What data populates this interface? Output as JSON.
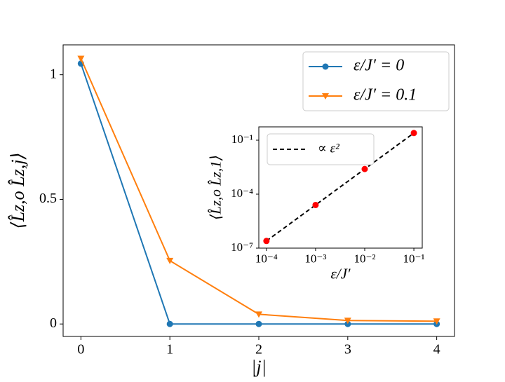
{
  "chart_data": [
    {
      "type": "line",
      "xlabel": "|j|",
      "ylabel": "⟨L̂z,o L̂z,j⟩",
      "x": [
        0,
        1,
        2,
        3,
        4
      ],
      "series": [
        {
          "name": "ε/J′ = 0",
          "color": "#1f77b4",
          "marker": "circle",
          "values": [
            1.045,
            0,
            0,
            0,
            0
          ]
        },
        {
          "name": "ε/J′ = 0.1",
          "color": "#ff7f0e",
          "marker": "triangle",
          "values": [
            1.065,
            0.254,
            0.039,
            0.014,
            0.011
          ]
        }
      ],
      "xlim": [
        -0.2,
        4.2
      ],
      "ylim": [
        -0.05,
        1.12
      ],
      "xticks": [
        0,
        1,
        2,
        3,
        4
      ],
      "yticks": [
        0,
        0.5,
        1
      ],
      "legend": "upper right"
    },
    {
      "type": "line",
      "xlabel": "ε/J′",
      "ylabel": "⟨L̂z,o L̂z,1⟩",
      "x": [
        0.0001,
        0.001,
        0.01,
        0.1
      ],
      "series": [
        {
          "name": "∝ ε²",
          "color": "#000000",
          "dashed": true,
          "values": [
            2.5e-07,
            2.5e-05,
            0.0025,
            0.25
          ]
        },
        {
          "color": "#ff0000",
          "marker": "circle",
          "values": [
            2.5e-07,
            2.5e-05,
            0.0025,
            0.25
          ]
        }
      ],
      "xscale": "log",
      "yscale": "log",
      "xlim": [
        7e-05,
        0.148
      ],
      "ylim": [
        1e-07,
        0.55
      ],
      "xticks": [
        {
          "value": 0.0001,
          "label": "10⁻⁴"
        },
        {
          "value": 0.001,
          "label": "10⁻³"
        },
        {
          "value": 0.01,
          "label": "10⁻²"
        },
        {
          "value": 0.1,
          "label": "10⁻¹"
        }
      ],
      "yticks": [
        {
          "value": 1e-07,
          "label": "10⁻⁷"
        },
        {
          "value": 0.0001,
          "label": "10⁻⁴"
        },
        {
          "value": 0.1,
          "label": "10⁻¹"
        }
      ],
      "legend": "upper left"
    }
  ]
}
